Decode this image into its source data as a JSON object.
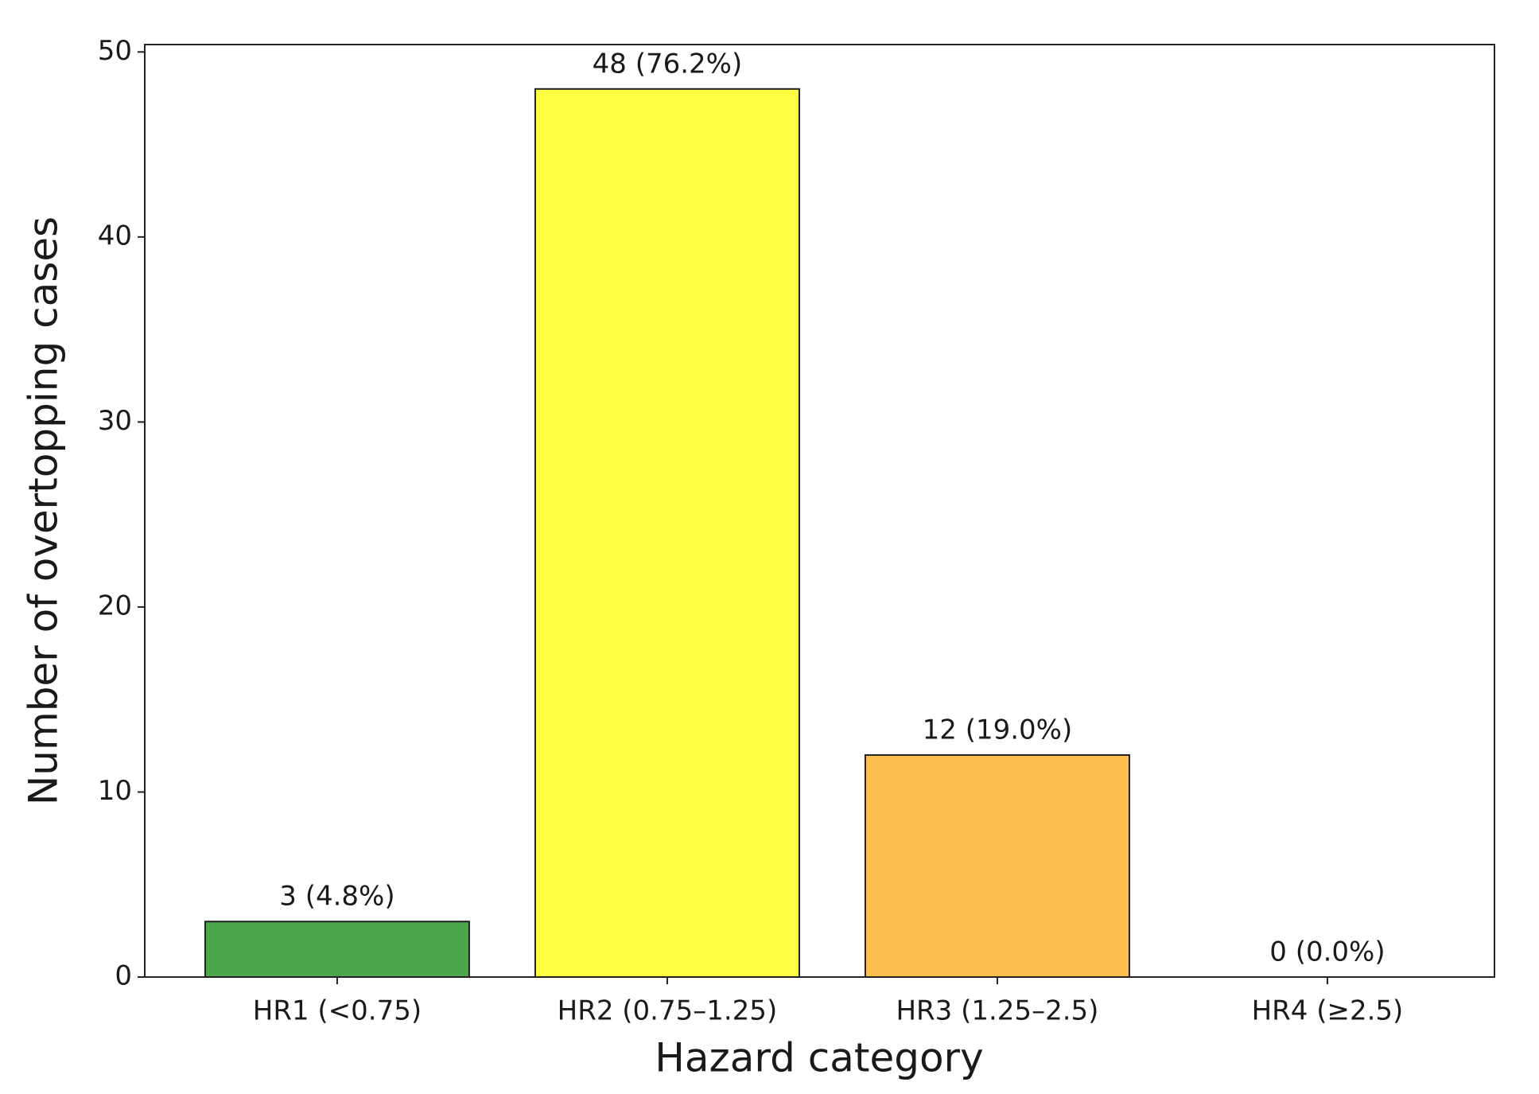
{
  "chart_data": {
    "type": "bar",
    "xlabel": "Hazard category",
    "ylabel": "Number of overtopping cases",
    "categories": [
      "HR1 (<0.75)",
      "HR2 (0.75–1.25)",
      "HR3 (1.25–2.5)",
      "HR4 (≥2.5)"
    ],
    "values": [
      3,
      48,
      12,
      0
    ],
    "value_labels": [
      "3 (4.8%)",
      "48 (76.2%)",
      "12 (19.0%)",
      "0 (0.0%)"
    ],
    "colors": [
      "#4ca64c",
      "#ffff44",
      "#ffbf4f",
      "#ffffff"
    ],
    "edgecolor": "#222222",
    "ylim": [
      0,
      50.4
    ],
    "yticks": [
      0,
      10,
      20,
      30,
      40,
      50
    ],
    "grid": false
  }
}
